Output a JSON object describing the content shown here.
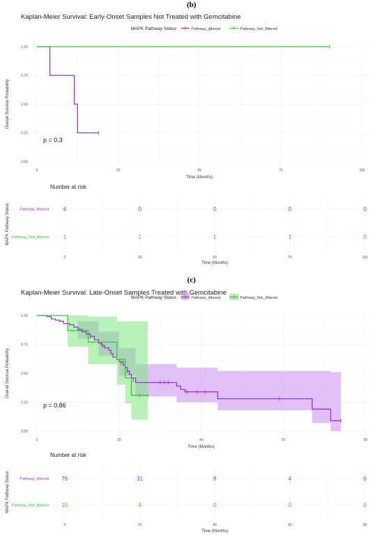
{
  "panels": [
    {
      "label": "(b)",
      "title": "Kaplan-Meier Survival: Early-Onset Samples Not Treated with Gemcitabine",
      "legend_title": "MAPK Pathway Status",
      "p_value": "p = 0.3",
      "risk_title": "Number at risk"
    },
    {
      "label": "(c)",
      "title": "Kaplan-Meier Survival: Late-Onset Samples Treated with Gemcitabine",
      "legend_title": "MAPK Pathway Status",
      "p_value": "p = 0.86",
      "risk_title": "Number at risk"
    }
  ],
  "colors": {
    "altered": "#9b30d9",
    "not_altered": "#2ecc2e",
    "altered_band": "#c98af0",
    "not_altered_band": "#7ee87e"
  },
  "chart_data": [
    {
      "type": "line",
      "subtype": "kaplan-meier",
      "title": "Kaplan-Meier Survival: Early-Onset Samples Not Treated with Gemcitabine",
      "xlabel": "Time (Months)",
      "ylabel": "Overall Survival Probability",
      "xlim": [
        0,
        100
      ],
      "ylim": [
        0,
        1
      ],
      "xticks": [
        "0",
        "25",
        "50",
        "75",
        "100"
      ],
      "yticks": [
        "0.00",
        "0.25",
        "0.50",
        "0.75",
        "1.00"
      ],
      "legend_position": "top",
      "confidence_bands": false,
      "series": [
        {
          "name": "Pathway_Altered",
          "color_key": "altered",
          "steps": [
            [
              0,
              1.0
            ],
            [
              4,
              0.75
            ],
            [
              11.5,
              0.5
            ],
            [
              12.5,
              0.25
            ],
            [
              19,
              0.25
            ]
          ],
          "censor": [
            [
              19,
              0.25
            ]
          ]
        },
        {
          "name": "Pathway_Not_Altered",
          "color_key": "not_altered",
          "steps": [
            [
              0,
              1.0
            ],
            [
              90,
              1.0
            ]
          ],
          "censor": [
            [
              90,
              1.0
            ]
          ]
        }
      ],
      "risk_table": {
        "title": "Number at risk",
        "ylabel": "MAPK Pathway Status",
        "xlabel": "Time (Months)",
        "times": [
          0,
          25,
          50,
          75,
          100
        ],
        "rows": [
          {
            "name": "Pathway_Altered",
            "color_key": "altered",
            "counts": [
              "4",
              "0",
              "0",
              "0",
              "0"
            ]
          },
          {
            "name": "Pathway_Not_Altered",
            "color_key": "not_altered",
            "counts": [
              "1",
              "1",
              "1",
              "1",
              "0"
            ]
          }
        ]
      }
    },
    {
      "type": "line",
      "subtype": "kaplan-meier",
      "title": "Kaplan-Meier Survival: Late-Onset Samples Treated with Gemcitabine",
      "xlabel": "Time (Months)",
      "ylabel": "Overall Survival Probability",
      "xlim": [
        0,
        80
      ],
      "ylim": [
        0,
        1
      ],
      "xticks": [
        "0",
        "20",
        "40",
        "60",
        "80"
      ],
      "yticks": [
        "0.00",
        "0.25",
        "0.50",
        "0.75",
        "1.00"
      ],
      "legend_position": "top",
      "confidence_bands": true,
      "series": [
        {
          "name": "Pathway_Altered",
          "color_key": "altered",
          "band_color_key": "altered_band",
          "steps": [
            [
              0,
              1.0
            ],
            [
              2.5,
              0.99
            ],
            [
              3.5,
              0.97
            ],
            [
              4.5,
              0.96
            ],
            [
              5.5,
              0.95
            ],
            [
              6.5,
              0.93
            ],
            [
              8,
              0.92
            ],
            [
              9,
              0.9
            ],
            [
              10,
              0.88
            ],
            [
              11,
              0.86
            ],
            [
              12,
              0.84
            ],
            [
              13,
              0.82
            ],
            [
              14,
              0.79
            ],
            [
              15,
              0.76
            ],
            [
              15.8,
              0.74
            ],
            [
              16.5,
              0.72
            ],
            [
              17.5,
              0.7
            ],
            [
              18,
              0.67
            ],
            [
              18.5,
              0.64
            ],
            [
              19.5,
              0.62
            ],
            [
              20,
              0.6
            ],
            [
              21,
              0.57
            ],
            [
              21.5,
              0.55
            ],
            [
              22,
              0.52
            ],
            [
              22.5,
              0.49
            ],
            [
              23,
              0.46
            ],
            [
              24,
              0.42
            ],
            [
              34,
              0.39
            ],
            [
              35,
              0.36
            ],
            [
              36,
              0.34
            ],
            [
              44,
              0.28
            ],
            [
              67,
              0.19
            ],
            [
              71.5,
              0.09
            ],
            [
              74,
              0.09
            ]
          ],
          "band_upper": [
            [
              0,
              1.0
            ],
            [
              10,
              0.95
            ],
            [
              15,
              0.86
            ],
            [
              20,
              0.72
            ],
            [
              24,
              0.58
            ],
            [
              34,
              0.55
            ],
            [
              44,
              0.52
            ],
            [
              67,
              0.52
            ],
            [
              71.5,
              0.51
            ],
            [
              74,
              0.51
            ]
          ],
          "band_lower": [
            [
              0,
              1.0
            ],
            [
              10,
              0.8
            ],
            [
              15,
              0.65
            ],
            [
              20,
              0.48
            ],
            [
              24,
              0.3
            ],
            [
              34,
              0.25
            ],
            [
              44,
              0.18
            ],
            [
              67,
              0.07
            ],
            [
              71.5,
              0.0
            ],
            [
              74,
              0.0
            ]
          ],
          "censor": [
            [
              13,
              0.82
            ],
            [
              16,
              0.74
            ],
            [
              20.5,
              0.59
            ],
            [
              22,
              0.52
            ],
            [
              23.5,
              0.44
            ],
            [
              30,
              0.42
            ],
            [
              31,
              0.42
            ],
            [
              32,
              0.42
            ],
            [
              36.5,
              0.34
            ],
            [
              39,
              0.34
            ],
            [
              41,
              0.34
            ],
            [
              59,
              0.28
            ],
            [
              74,
              0.09
            ]
          ]
        },
        {
          "name": "Pathway_Not_Altered",
          "color_key": "not_altered",
          "band_color_key": "not_altered_band",
          "steps": [
            [
              0,
              1.0
            ],
            [
              7.5,
              0.87
            ],
            [
              12.5,
              0.77
            ],
            [
              19.5,
              0.62
            ],
            [
              21.5,
              0.46
            ],
            [
              23,
              0.31
            ],
            [
              27,
              0.31
            ]
          ],
          "band_upper": [
            [
              0,
              1.0
            ],
            [
              7.5,
              1.0
            ],
            [
              12.5,
              0.99
            ],
            [
              19.5,
              0.95
            ],
            [
              21.5,
              0.95
            ],
            [
              23,
              0.95
            ],
            [
              27,
              0.95
            ]
          ],
          "band_lower": [
            [
              0,
              1.0
            ],
            [
              7.5,
              0.73
            ],
            [
              12.5,
              0.58
            ],
            [
              19.5,
              0.4
            ],
            [
              21.5,
              0.24
            ],
            [
              23,
              0.1
            ],
            [
              27,
              0.1
            ]
          ],
          "censor": [
            [
              25,
              0.31
            ],
            [
              27,
              0.31
            ]
          ]
        }
      ],
      "risk_table": {
        "title": "Number at risk",
        "ylabel": "MAPK Pathway Status",
        "xlabel": "Time (Months)",
        "times": [
          0,
          20,
          40,
          60,
          80
        ],
        "rows": [
          {
            "name": "Pathway_Altered",
            "color_key": "altered",
            "counts": [
              "76",
              "31",
              "8",
              "4",
              "0"
            ]
          },
          {
            "name": "Pathway_Not_Altered",
            "color_key": "not_altered",
            "counts": [
              "15",
              "4",
              "0",
              "0",
              "0"
            ]
          }
        ]
      }
    }
  ]
}
